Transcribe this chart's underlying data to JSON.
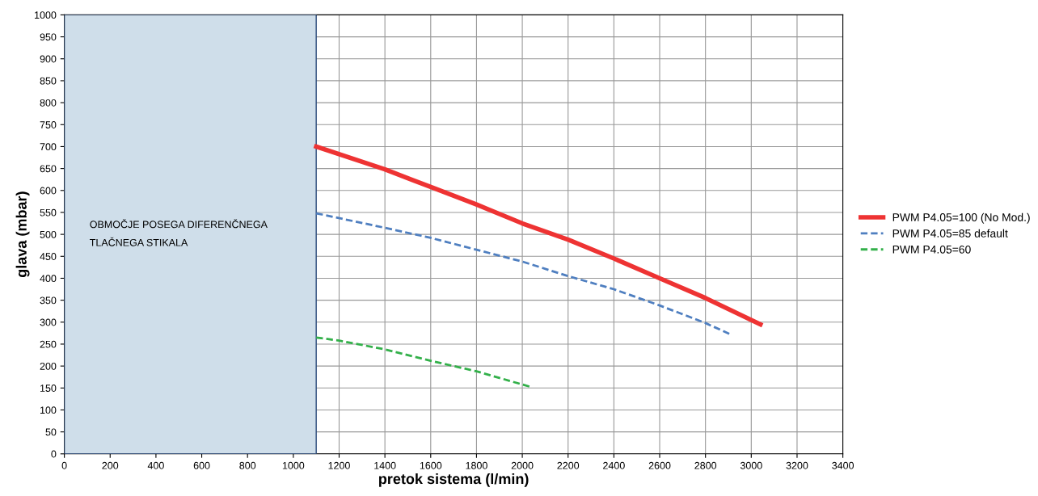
{
  "chart_data": {
    "type": "line",
    "xlabel": "pretok sistema (l/min)",
    "ylabel": "glava (mbar)",
    "xlim": [
      0,
      3400
    ],
    "xticks": [
      0,
      200,
      400,
      600,
      800,
      1000,
      1200,
      1400,
      1600,
      1800,
      2000,
      2200,
      2400,
      2600,
      2800,
      3000,
      3200,
      3400
    ],
    "ylim": [
      0,
      1000
    ],
    "yticks": [
      0,
      50,
      100,
      150,
      200,
      250,
      300,
      350,
      400,
      450,
      500,
      550,
      600,
      650,
      700,
      750,
      800,
      850,
      900,
      950,
      1000
    ],
    "grid": true,
    "legend": "right",
    "marker": "none",
    "bands": [
      {
        "axis": "x",
        "from": 0,
        "to": 1100,
        "label": "OBMOČJE POSEGA DIFERENČNEGA\nTLAČNEGA STIKALA",
        "color": "#cfdeea"
      }
    ],
    "series": [
      {
        "name": "PWM P4.05=100 (No Mod.)",
        "color": "#ee3333",
        "line_style": "solid",
        "x": [
          1100,
          1400,
          1600,
          1800,
          2000,
          2200,
          2400,
          2600,
          2800,
          3040
        ],
        "values": [
          700,
          648,
          608,
          568,
          525,
          488,
          445,
          400,
          355,
          295
        ]
      },
      {
        "name": "PWM P4.05=85 default",
        "color": "#4f7fc0",
        "line_style": "dashed",
        "x": [
          1100,
          1400,
          1600,
          1800,
          2000,
          2200,
          2400,
          2600,
          2800,
          2910
        ],
        "values": [
          548,
          515,
          492,
          465,
          438,
          405,
          375,
          338,
          298,
          272
        ]
      },
      {
        "name": "PWM P4.05=60",
        "color": "#33b04a",
        "line_style": "dashed",
        "x": [
          1100,
          1200,
          1400,
          1600,
          1800,
          2040
        ],
        "values": [
          265,
          258,
          238,
          212,
          188,
          152
        ]
      }
    ]
  }
}
